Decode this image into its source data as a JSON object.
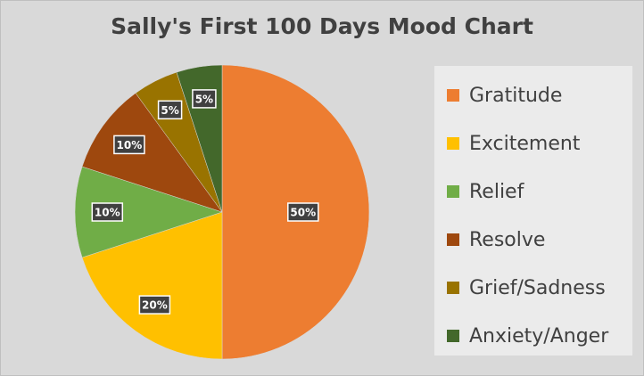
{
  "chart_data": {
    "type": "pie",
    "title": "Sally's First 100 Days Mood Chart",
    "categories": [
      "Gratitude",
      "Excitement",
      "Relief",
      "Resolve",
      "Grief/Sadness",
      "Anxiety/Anger"
    ],
    "values": [
      50,
      20,
      10,
      10,
      5,
      5
    ],
    "data_labels": [
      "50%",
      "20%",
      "10%",
      "10%",
      "5%",
      "5%"
    ],
    "colors": [
      "#ed7d31",
      "#ffc000",
      "#70ad47",
      "#9e480e",
      "#997300",
      "#43682b"
    ],
    "start_angle": "12 o'clock",
    "direction": "clockwise",
    "legend_position": "right"
  }
}
